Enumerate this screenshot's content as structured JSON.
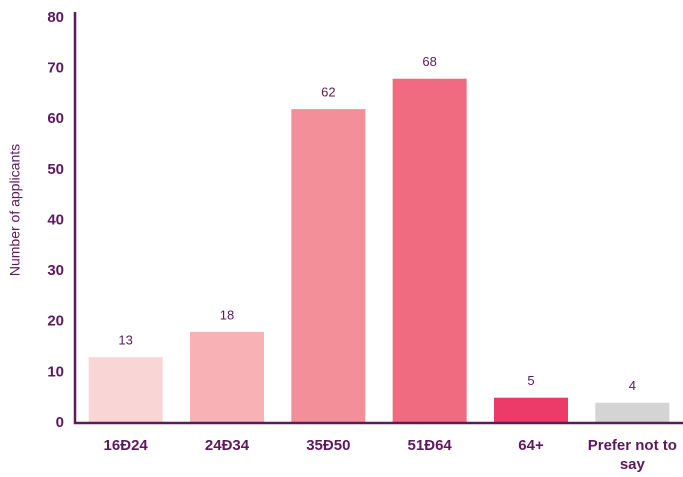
{
  "chart_data": {
    "type": "bar",
    "y_label": "Number of applicants",
    "categories": [
      "16Ð24",
      "24Ð34",
      "35Ð50",
      "51Ð64",
      "64+",
      "Prefer not to say"
    ],
    "values": [
      13,
      18,
      62,
      68,
      5,
      4
    ],
    "colors": [
      "#fad5d6",
      "#f8b1b4",
      "#f38f98",
      "#f06b7f",
      "#ec3a69",
      "#d4d4d4"
    ],
    "ylim": [
      0,
      80
    ],
    "yticks": [
      0,
      10,
      20,
      30,
      40,
      50,
      60,
      70,
      80
    ],
    "grid": false
  }
}
